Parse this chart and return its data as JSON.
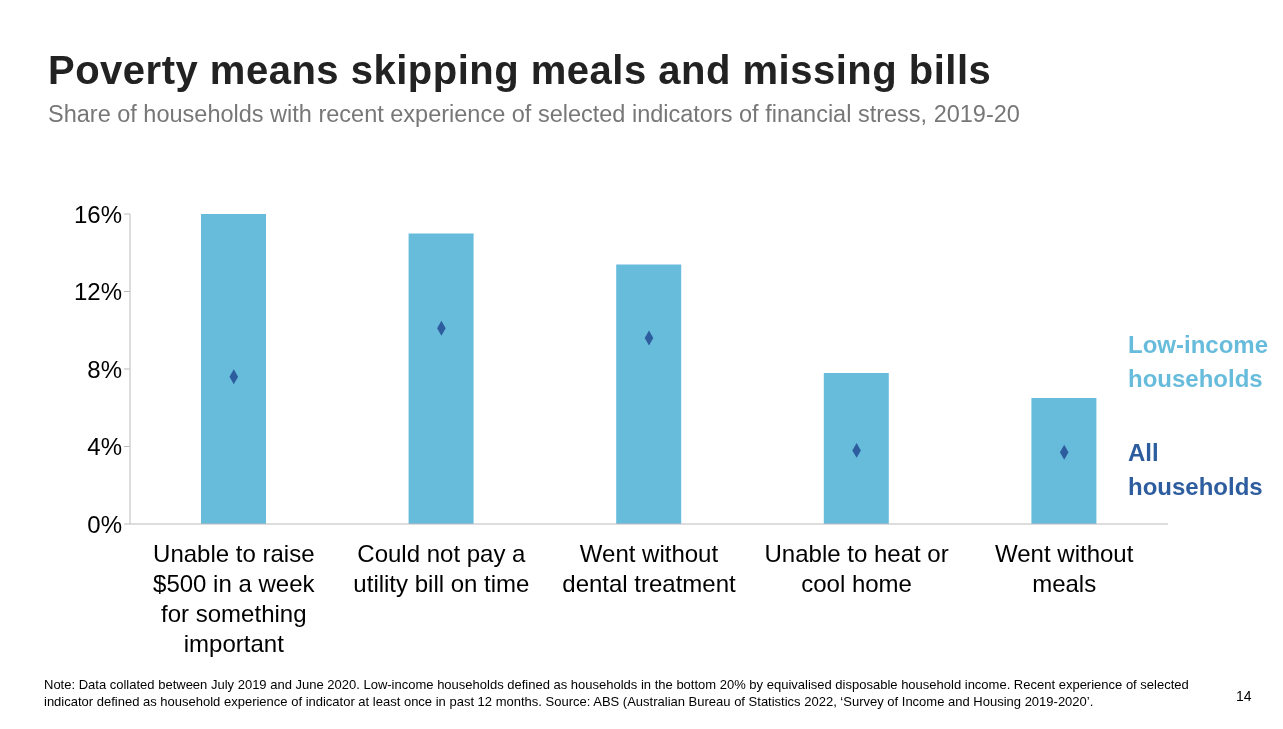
{
  "chart_data": {
    "type": "bar",
    "title": "Poverty means skipping meals and missing bills",
    "subtitle": "Share of households with recent experience of selected indicators of financial stress, 2019-20",
    "categories": [
      "Unable to raise $500 in a week for something important",
      "Could not pay a utility bill on time",
      "Went without dental treatment",
      "Unable to heat or cool home",
      "Went without meals"
    ],
    "series": [
      {
        "name": "Low-income households",
        "color": "#67bcdc",
        "values": [
          16,
          15.0,
          13.4,
          7.8,
          6.5
        ]
      },
      {
        "name": "All households",
        "type": "scatter",
        "color": "#2e5d9f",
        "values": [
          7.6,
          10.1,
          9.6,
          3.8,
          3.7
        ]
      }
    ],
    "ylim": [
      0,
      16
    ],
    "yticks": [
      {
        "value": 0,
        "label": "0%"
      },
      {
        "value": 4,
        "label": "4%"
      },
      {
        "value": 8,
        "label": "8%"
      },
      {
        "value": 12,
        "label": "12%"
      },
      {
        "value": 16,
        "label": "16%"
      }
    ],
    "grid": false,
    "legend": "right",
    "marker": "diamond",
    "annotations": [
      "Note: Data collated between July 2019 and June 2020. Low-income households defined as households in the bottom 20% by equivalised disposable household income. Recent experience of selected indicator defined as household experience of indicator at least once in past 12 months. Source: ABS (Australian Bureau of Statistics 2022, ‘Survey of Income and Housing 2019-2020’.",
      "14"
    ]
  }
}
